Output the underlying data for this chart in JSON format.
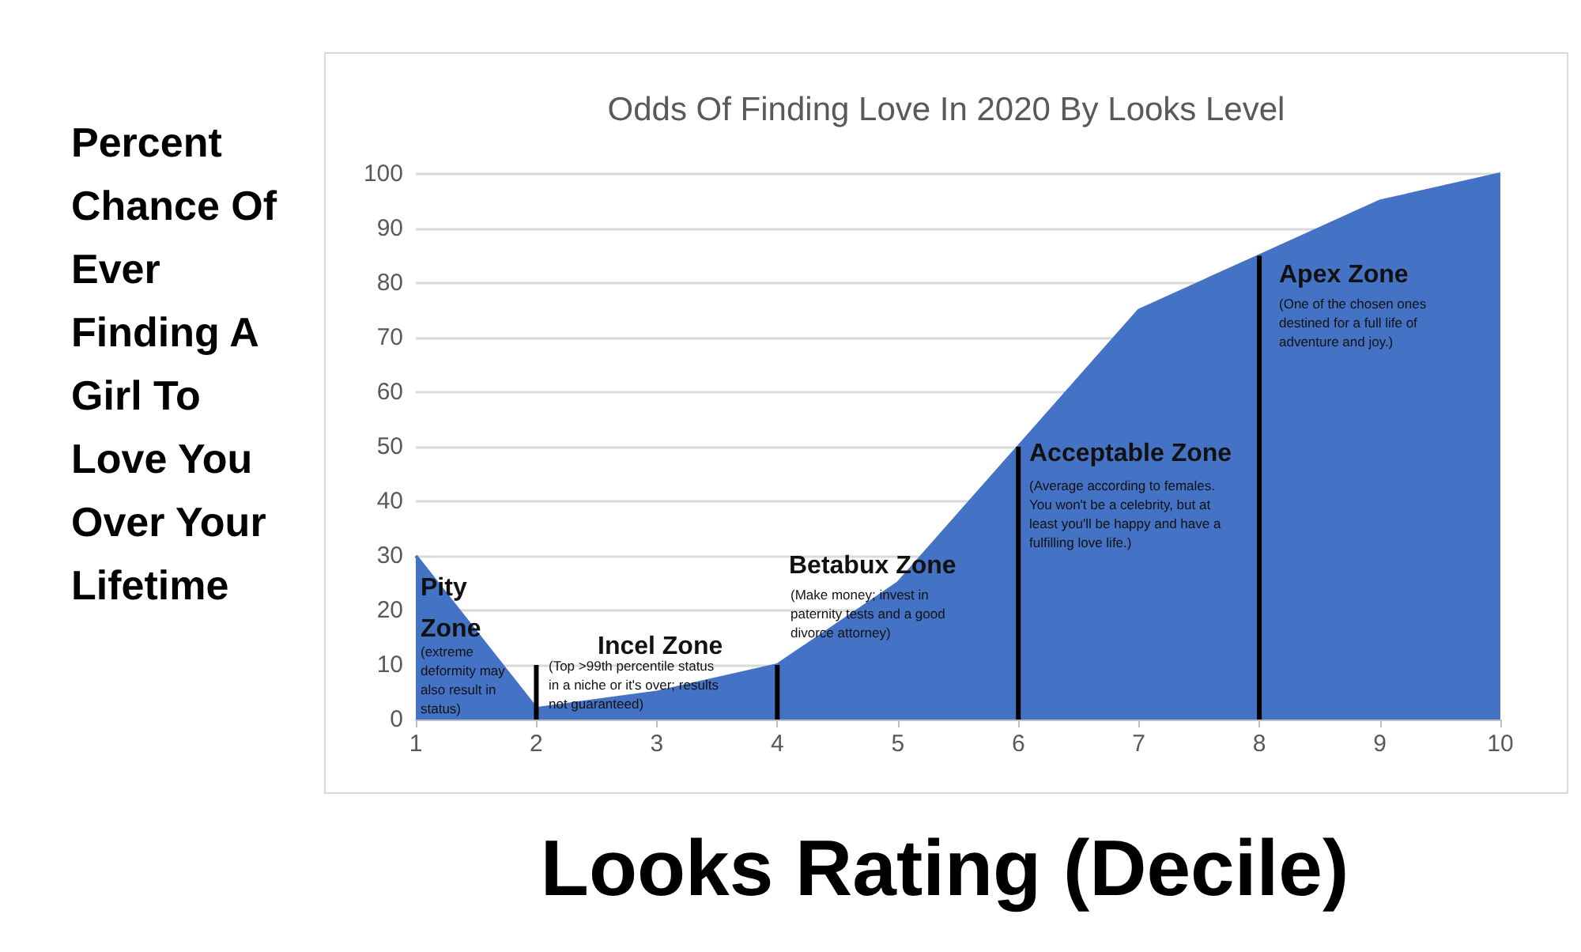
{
  "chart_data": {
    "type": "area",
    "title": "Odds Of Finding Love In 2020 By Looks Level",
    "xlabel": "Looks Rating (Decile)",
    "ylabel": "Percent Chance Of Ever Finding A Girl To Love You Over Your Lifetime",
    "x": [
      1,
      2,
      3,
      4,
      5,
      6,
      7,
      8,
      9,
      10
    ],
    "series": [
      {
        "color": "#4472c4",
        "values": [
          30,
          2,
          5,
          10,
          25,
          50,
          75,
          85,
          95,
          100
        ]
      },
      {
        "type": "bar",
        "color": "#000000",
        "x": [
          2,
          4,
          6,
          8
        ],
        "values": [
          10,
          10,
          50,
          85
        ]
      }
    ],
    "xlim": [
      1,
      10
    ],
    "xticks": [
      1,
      2,
      3,
      4,
      5,
      6,
      7,
      8,
      9,
      10
    ],
    "ylim": [
      0,
      100
    ],
    "yticks": [
      0,
      10,
      20,
      30,
      40,
      50,
      60,
      70,
      80,
      90,
      100
    ],
    "grid": "y",
    "marker": "none",
    "annotations": [
      "Pity\nZone",
      "(extreme\ndeformity may\nalso result in\nstatus)",
      "Incel Zone",
      "(Top >99th percentile status\nin a niche or it's over; results\nnot guaranteed)",
      "Betabux Zone",
      "(Make money; invest in\npaternity tests and a good\ndivorce attorney)",
      "Acceptable Zone",
      "(Average according to females.\nYou won't be a celebrity, but at\nleast you'll be happy and have a\nfulfilling love life.)",
      "Apex Zone",
      "(One of the chosen ones\ndestined for a full life of\nadventure and joy.)"
    ]
  }
}
